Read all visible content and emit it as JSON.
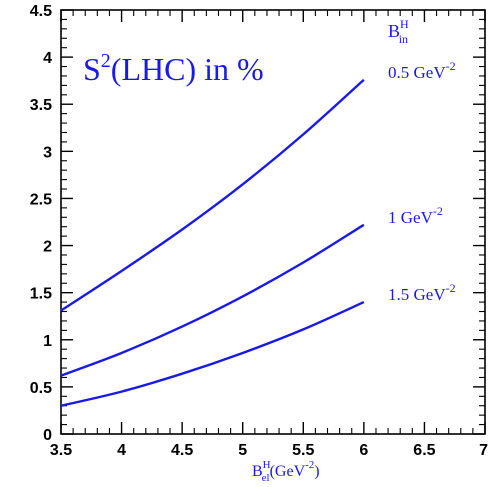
{
  "chart_data": {
    "type": "line",
    "title": "S",
    "title_sup": "2",
    "title_rest": "(LHC) in %",
    "xlabel": {
      "base": "B",
      "sup": "H",
      "sub": "el",
      "unit_open": "(GeV",
      "unit_sup": "-2",
      "unit_close": ")"
    },
    "ylabel": "",
    "xlim": [
      3.5,
      7
    ],
    "ylim": [
      0,
      4.5
    ],
    "x_ticks": [
      "3.5",
      "4",
      "4.5",
      "5",
      "5.5",
      "6",
      "6.5",
      "7"
    ],
    "y_ticks": [
      "0",
      "0.5",
      "1",
      "1.5",
      "2",
      "2.5",
      "3",
      "3.5",
      "4",
      "4.5"
    ],
    "grid": false,
    "legend_title": {
      "base": "B",
      "sup": "H",
      "sub": "in"
    },
    "series": [
      {
        "name": "0.5 GeV-2",
        "label_value": "0.5 GeV",
        "label_sup": "-2",
        "x": [
          3.5,
          4.0,
          4.5,
          5.0,
          5.5,
          6.0
        ],
        "y": [
          1.31,
          1.73,
          2.17,
          2.65,
          3.18,
          3.76
        ]
      },
      {
        "name": "1 GeV-2",
        "label_value": "1 GeV",
        "label_sup": "-2",
        "x": [
          3.5,
          4.0,
          4.5,
          5.0,
          5.5,
          6.0
        ],
        "y": [
          0.62,
          0.86,
          1.14,
          1.46,
          1.82,
          2.22
        ]
      },
      {
        "name": "1.5 GeV-2",
        "label_value": "1.5 GeV",
        "label_sup": "-2",
        "x": [
          3.5,
          4.0,
          4.5,
          5.0,
          5.5,
          6.0
        ],
        "y": [
          0.3,
          0.45,
          0.64,
          0.86,
          1.11,
          1.4
        ]
      }
    ],
    "colors": {
      "series": "#1a1ae6",
      "axes": "#000000"
    }
  }
}
